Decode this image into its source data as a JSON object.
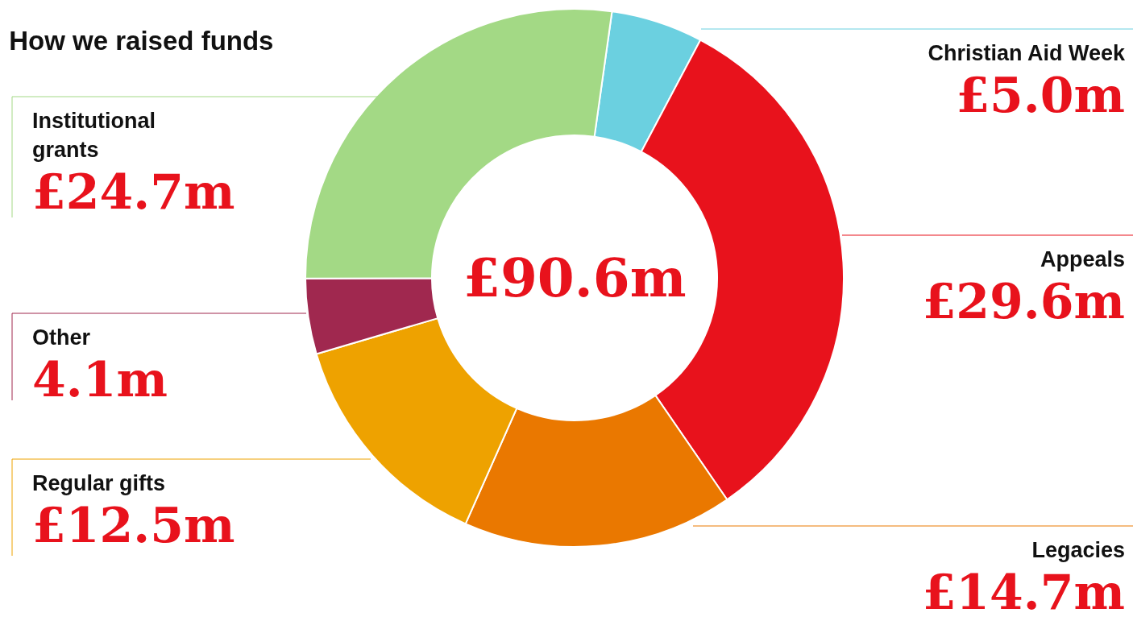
{
  "chart_data": {
    "type": "donut",
    "title": "How we raised funds",
    "categories": [
      "Christian Aid Week",
      "Appeals",
      "Legacies",
      "Regular gifts",
      "Other",
      "Institutional grants"
    ],
    "values": [
      5.0,
      29.6,
      14.7,
      12.5,
      4.1,
      24.7
    ],
    "colors": [
      "#6bd0e0",
      "#e8121c",
      "#ea7800",
      "#eea200",
      "#a0284f",
      "#a3d985"
    ],
    "value_labels": [
      "£5.0m",
      "£29.6m",
      "£14.7m",
      "£12.5m",
      "4.1m",
      "£24.7m"
    ],
    "annotations": [
      "£90.6m"
    ],
    "legend": false
  }
}
